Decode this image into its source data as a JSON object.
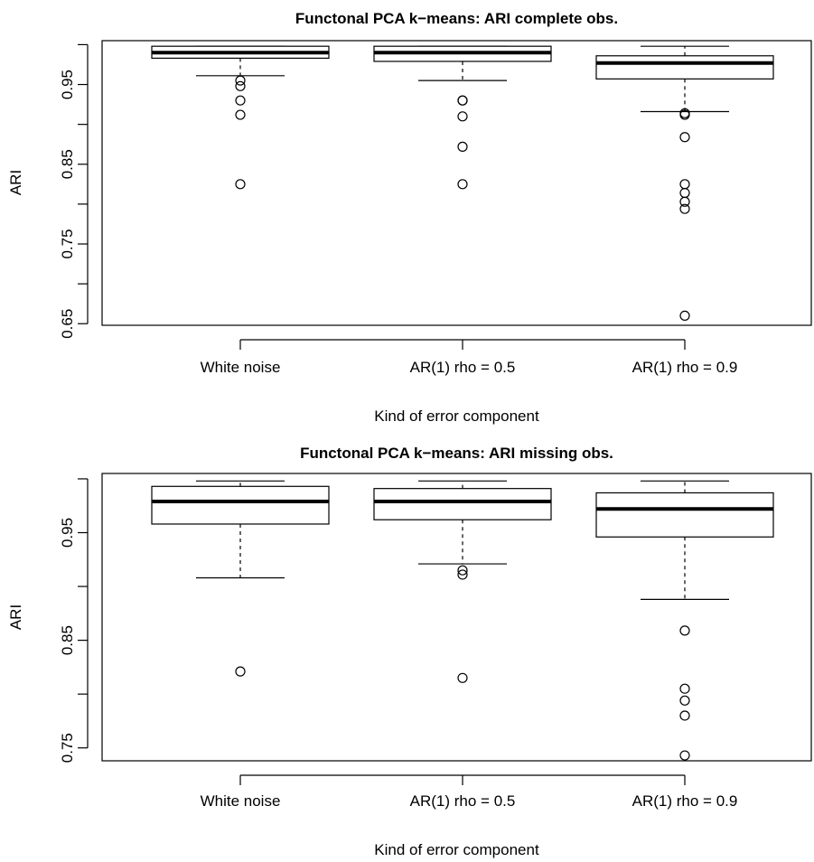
{
  "chart_data": [
    {
      "type": "boxplot",
      "title": "Functonal PCA k−means: ARI complete obs.",
      "xlabel": "Kind of error component",
      "ylabel": "ARI",
      "categories": [
        "White noise",
        "AR(1) rho = 0.5",
        "AR(1) rho = 0.9"
      ],
      "ylim": [
        0.648,
        1.005
      ],
      "yticks": [
        0.65,
        0.7,
        0.75,
        0.8,
        0.85,
        0.9,
        0.95,
        1.0
      ],
      "ytick_labels": [
        "0.65",
        "",
        "0.75",
        "",
        "0.85",
        "",
        "0.95",
        ""
      ],
      "grid": false,
      "boxes": [
        {
          "whisker_low": 0.961,
          "q1": 0.983,
          "median": 0.99,
          "q3": 0.998,
          "whisker_high": 0.998,
          "outliers": [
            0.955,
            0.948,
            0.93,
            0.912,
            0.825
          ]
        },
        {
          "whisker_low": 0.955,
          "q1": 0.979,
          "median": 0.99,
          "q3": 0.998,
          "whisker_high": 0.998,
          "outliers": [
            0.93,
            0.93,
            0.91,
            0.872,
            0.825
          ]
        },
        {
          "whisker_low": 0.916,
          "q1": 0.957,
          "median": 0.977,
          "q3": 0.986,
          "whisker_high": 0.998,
          "outliers": [
            0.914,
            0.912,
            0.884,
            0.825,
            0.814,
            0.803,
            0.794,
            0.66
          ]
        }
      ]
    },
    {
      "type": "boxplot",
      "title": "Functonal PCA k−means: ARI missing obs.",
      "xlabel": "Kind of error component",
      "ylabel": "ARI",
      "categories": [
        "White noise",
        "AR(1) rho = 0.5",
        "AR(1) rho = 0.9"
      ],
      "ylim": [
        0.738,
        1.005
      ],
      "yticks": [
        0.75,
        0.8,
        0.85,
        0.9,
        0.95,
        1.0
      ],
      "ytick_labels": [
        "0.75",
        "",
        "0.85",
        "",
        "0.95",
        ""
      ],
      "grid": false,
      "boxes": [
        {
          "whisker_low": 0.908,
          "q1": 0.958,
          "median": 0.979,
          "q3": 0.993,
          "whisker_high": 0.998,
          "outliers": [
            0.821
          ]
        },
        {
          "whisker_low": 0.921,
          "q1": 0.962,
          "median": 0.979,
          "q3": 0.991,
          "whisker_high": 0.998,
          "outliers": [
            0.915,
            0.911,
            0.815
          ]
        },
        {
          "whisker_low": 0.888,
          "q1": 0.946,
          "median": 0.972,
          "q3": 0.987,
          "whisker_high": 0.998,
          "outliers": [
            0.859,
            0.805,
            0.794,
            0.78,
            0.743
          ]
        }
      ]
    }
  ]
}
